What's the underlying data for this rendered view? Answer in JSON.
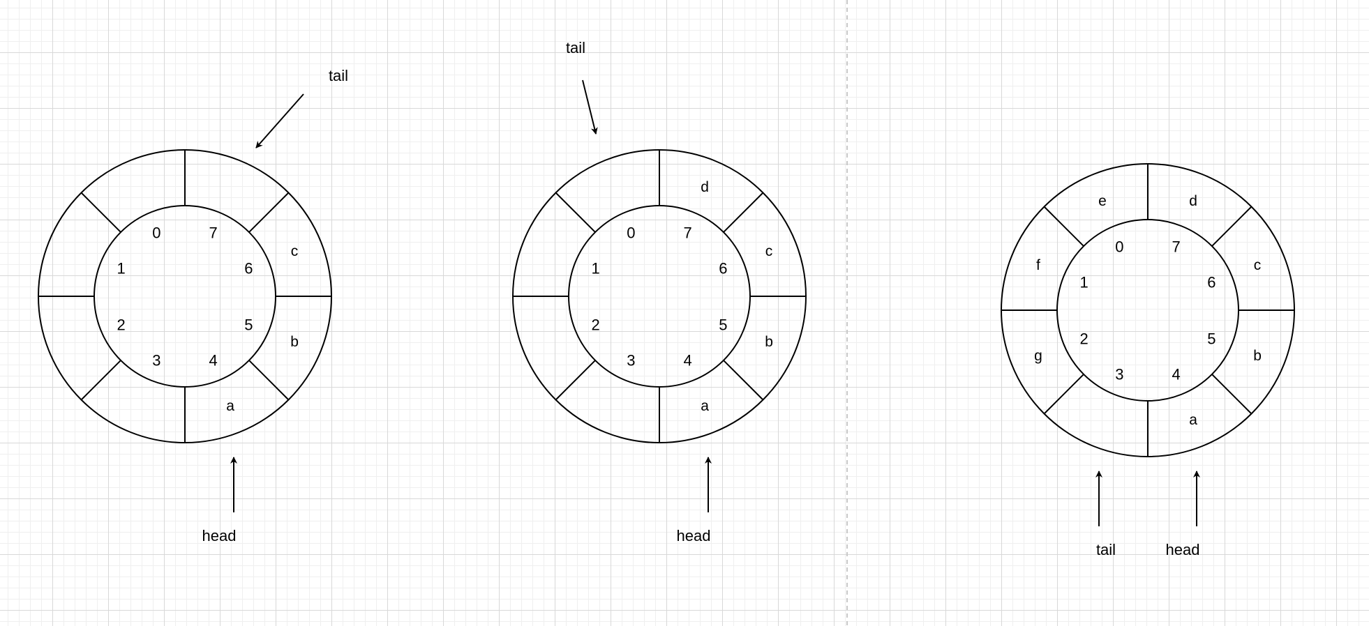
{
  "canvas": {
    "divider_color": "#c8c8c8"
  },
  "diagrams": [
    {
      "indices": [
        "0",
        "1",
        "2",
        "3",
        "4",
        "5",
        "6",
        "7"
      ],
      "slots": [
        "",
        "",
        "",
        "",
        "a",
        "b",
        "c",
        ""
      ],
      "pointers": [
        {
          "label": "tail",
          "target_index": "7"
        },
        {
          "label": "head",
          "target_index": "4"
        }
      ]
    },
    {
      "indices": [
        "0",
        "1",
        "2",
        "3",
        "4",
        "5",
        "6",
        "7"
      ],
      "slots": [
        "",
        "",
        "",
        "",
        "a",
        "b",
        "c",
        "d"
      ],
      "pointers": [
        {
          "label": "tail",
          "target_index": "0"
        },
        {
          "label": "head",
          "target_index": "4"
        }
      ]
    },
    {
      "indices": [
        "0",
        "1",
        "2",
        "3",
        "4",
        "5",
        "6",
        "7"
      ],
      "slots": [
        "e",
        "f",
        "g",
        "",
        "a",
        "b",
        "c",
        "d"
      ],
      "pointers": [
        {
          "label": "tail",
          "target_index": "3"
        },
        {
          "label": "head",
          "target_index": "4"
        }
      ]
    }
  ]
}
